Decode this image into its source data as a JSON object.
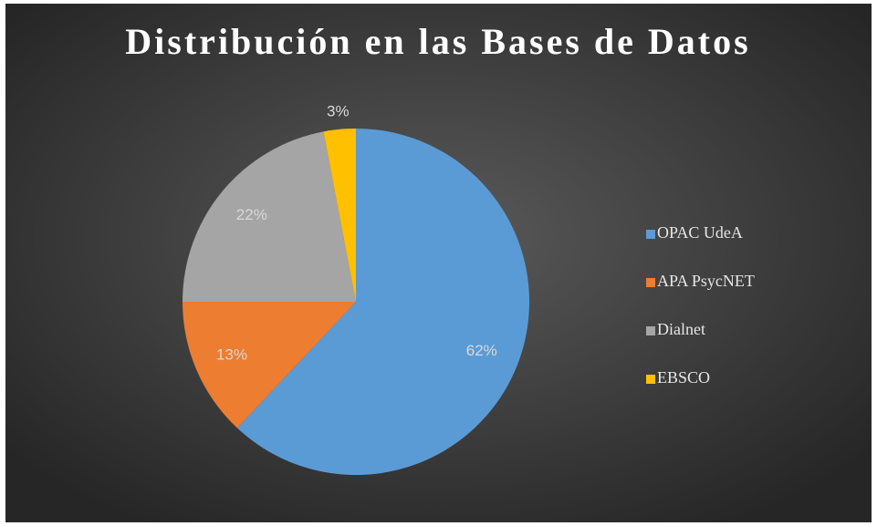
{
  "chart_data": {
    "type": "pie",
    "title": "Distribución en las Bases de Datos",
    "categories": [
      "OPAC UdeA",
      "APA PsycNET",
      "Dialnet",
      "EBSCO"
    ],
    "values": [
      62,
      13,
      22,
      3
    ],
    "value_labels": [
      "62%",
      "13%",
      "22%",
      "3%"
    ],
    "colors": [
      "#5b9bd5",
      "#ed7d31",
      "#a5a5a5",
      "#ffc000"
    ],
    "legend": "right"
  }
}
